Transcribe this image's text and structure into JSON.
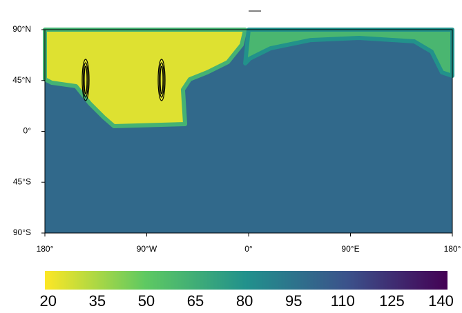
{
  "chart_data": {
    "type": "map",
    "xlim": [
      -180,
      180
    ],
    "ylim": [
      -90,
      90
    ],
    "xticks": [
      {
        "value": -180,
        "label": "180°"
      },
      {
        "value": -90,
        "label": "90°W"
      },
      {
        "value": 0,
        "label": "0°"
      },
      {
        "value": 90,
        "label": "90°E"
      },
      {
        "value": 180,
        "label": "180°"
      }
    ],
    "yticks": [
      {
        "value": 90,
        "label": "90°N"
      },
      {
        "value": 45,
        "label": "45°N"
      },
      {
        "value": 0,
        "label": "0°"
      },
      {
        "value": -45,
        "label": "45°S"
      },
      {
        "value": -90,
        "label": "90°S"
      }
    ],
    "background_value": 100,
    "regions": [
      {
        "value": 25,
        "polygon": [
          [
            -180,
            90
          ],
          [
            -3,
            90
          ],
          [
            -6.1,
            76.6
          ],
          [
            -18.3,
            61.3
          ],
          [
            -36.6,
            52.2
          ],
          [
            -51.9,
            46.1
          ],
          [
            -58,
            36.9
          ],
          [
            -56.1,
            6.4
          ],
          [
            -119,
            4.6
          ],
          [
            -128.1,
            12.5
          ],
          [
            -140.3,
            24.7
          ],
          [
            -152.5,
            40
          ],
          [
            -173.9,
            43
          ],
          [
            -180,
            46.1
          ]
        ]
      },
      {
        "value": 60,
        "polygon": [
          [
            0,
            90
          ],
          [
            180,
            90
          ],
          [
            180,
            49.1
          ],
          [
            170.8,
            52.2
          ],
          [
            161.7,
            70.5
          ],
          [
            146.4,
            79.6
          ],
          [
            97.6,
            82.7
          ],
          [
            54.9,
            80.8
          ],
          [
            19.4,
            73.5
          ],
          [
            1.1,
            64.4
          ],
          [
            -3,
            60.1
          ]
        ]
      }
    ],
    "colormap": [
      "#fde725",
      "#5ec962",
      "#21918c",
      "#3b528b",
      "#440154"
    ],
    "clim": [
      19,
      142
    ],
    "colorbar_ticks": [
      20,
      35,
      50,
      65,
      80,
      95,
      110,
      125,
      140
    ]
  }
}
